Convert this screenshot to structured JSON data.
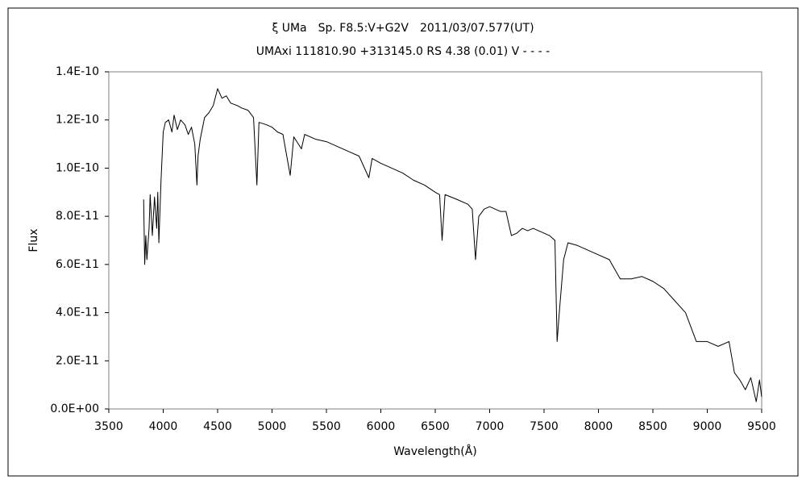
{
  "chart_data": {
    "type": "line",
    "title": "ξ UMa　Sp. F8.5:V+G2V　2011/03/07.577(UT)",
    "subtitle": "UMAxi 111810.90 +313145.0 RS 4.38 (0.01) V - - - -",
    "xlabel": "Wavelength(Å)",
    "ylabel": "Flux",
    "x": [
      3820,
      3830,
      3840,
      3850,
      3870,
      3880,
      3900,
      3920,
      3940,
      3950,
      3960,
      3980,
      4000,
      4020,
      4050,
      4080,
      4100,
      4130,
      4160,
      4200,
      4230,
      4260,
      4290,
      4310,
      4320,
      4340,
      4380,
      4420,
      4460,
      4500,
      4540,
      4580,
      4620,
      4680,
      4720,
      4780,
      4830,
      4861,
      4880,
      4950,
      5000,
      5050,
      5100,
      5167,
      5200,
      5270,
      5300,
      5400,
      5500,
      5600,
      5700,
      5800,
      5890,
      5920,
      6000,
      6100,
      6200,
      6300,
      6400,
      6500,
      6540,
      6563,
      6590,
      6700,
      6800,
      6840,
      6870,
      6900,
      6950,
      7000,
      7100,
      7150,
      7200,
      7250,
      7300,
      7350,
      7400,
      7500,
      7550,
      7600,
      7620,
      7640,
      7680,
      7720,
      7800,
      7900,
      8000,
      8100,
      8150,
      8200,
      8300,
      8400,
      8500,
      8600,
      8700,
      8800,
      8900,
      9000,
      9100,
      9200,
      9250,
      9300,
      9350,
      9400,
      9450,
      9480,
      9500
    ],
    "series": [
      {
        "color": "#000000",
        "values": [
          8.7e-11,
          6e-11,
          7.2e-11,
          6.2e-11,
          7.5e-11,
          8.9e-11,
          7.2e-11,
          8.8e-11,
          7.5e-11,
          9e-11,
          6.9e-11,
          9.5e-11,
          1.15e-10,
          1.19e-10,
          1.2e-10,
          1.15e-10,
          1.22e-10,
          1.16e-10,
          1.2e-10,
          1.18e-10,
          1.14e-10,
          1.17e-10,
          1.1e-10,
          9.3e-11,
          1.05e-10,
          1.12e-10,
          1.21e-10,
          1.23e-10,
          1.26e-10,
          1.33e-10,
          1.29e-10,
          1.3e-10,
          1.27e-10,
          1.26e-10,
          1.25e-10,
          1.24e-10,
          1.21e-10,
          9.3e-11,
          1.19e-10,
          1.18e-10,
          1.17e-10,
          1.15e-10,
          1.14e-10,
          9.7e-11,
          1.13e-10,
          1.08e-10,
          1.14e-10,
          1.12e-10,
          1.11e-10,
          1.09e-10,
          1.07e-10,
          1.05e-10,
          9.6e-11,
          1.04e-10,
          1.02e-10,
          1e-10,
          9.8e-11,
          9.5e-11,
          9.3e-11,
          9e-11,
          8.9e-11,
          7e-11,
          8.9e-11,
          8.7e-11,
          8.5e-11,
          8.3e-11,
          6.2e-11,
          8e-11,
          8.3e-11,
          8.4e-11,
          8.2e-11,
          8.2e-11,
          7.2e-11,
          7.3e-11,
          7.5e-11,
          7.4e-11,
          7.5e-11,
          7.3e-11,
          7.2e-11,
          7e-11,
          2.8e-11,
          4e-11,
          6.2e-11,
          6.9e-11,
          6.8e-11,
          6.6e-11,
          6.4e-11,
          6.2e-11,
          5.8e-11,
          5.4e-11,
          5.4e-11,
          5.5e-11,
          5.3e-11,
          5e-11,
          4.5e-11,
          4e-11,
          2.8e-11,
          2.8e-11,
          2.6e-11,
          2.8e-11,
          1.5e-11,
          1.2e-11,
          8e-12,
          1.3e-11,
          3e-12,
          1.2e-11,
          5e-12
        ]
      }
    ],
    "xlim": [
      3500,
      9500
    ],
    "xticks": [
      3500,
      4000,
      4500,
      5000,
      5500,
      6000,
      6500,
      7000,
      7500,
      8000,
      8500,
      9000,
      9500
    ],
    "ylim": [
      0,
      1.4e-10
    ],
    "yticks": [
      {
        "value": 0,
        "label": "0.0E+00"
      },
      {
        "value": 2e-11,
        "label": "2.0E-11"
      },
      {
        "value": 4e-11,
        "label": "4.0E-11"
      },
      {
        "value": 6e-11,
        "label": "6.0E-11"
      },
      {
        "value": 8e-11,
        "label": "8.0E-11"
      },
      {
        "value": 1e-10,
        "label": "1.0E-10"
      },
      {
        "value": 1.2e-10,
        "label": "1.2E-10"
      },
      {
        "value": 1.4e-10,
        "label": "1.4E-10"
      }
    ],
    "grid": false
  }
}
